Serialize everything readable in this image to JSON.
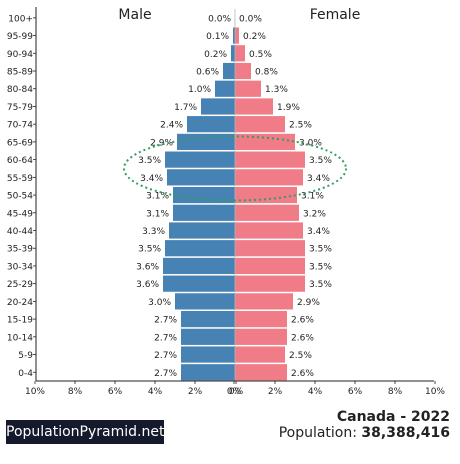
{
  "chart_data": {
    "type": "bar",
    "subtype": "population-pyramid",
    "left_label": "Male",
    "right_label": "Female",
    "categories": [
      "100+",
      "95-99",
      "90-94",
      "85-89",
      "80-84",
      "75-79",
      "70-74",
      "65-69",
      "60-64",
      "55-59",
      "50-54",
      "45-49",
      "40-44",
      "35-39",
      "30-34",
      "25-29",
      "20-24",
      "15-19",
      "10-14",
      "5-9",
      "0-4"
    ],
    "series": [
      {
        "name": "Male",
        "values": [
          0.0,
          0.1,
          0.2,
          0.6,
          1.0,
          1.7,
          2.4,
          2.9,
          3.5,
          3.4,
          3.1,
          3.1,
          3.3,
          3.5,
          3.6,
          3.6,
          3.0,
          2.7,
          2.7,
          2.7,
          2.7
        ]
      },
      {
        "name": "Female",
        "values": [
          0.0,
          0.2,
          0.5,
          0.8,
          1.3,
          1.9,
          2.5,
          3.0,
          3.5,
          3.4,
          3.1,
          3.2,
          3.4,
          3.5,
          3.5,
          3.5,
          2.9,
          2.6,
          2.6,
          2.5,
          2.6
        ]
      }
    ],
    "x_ticks": [
      "10%",
      "8%",
      "6%",
      "4%",
      "2%",
      "0%",
      "0%",
      "2%",
      "4%",
      "6%",
      "8%",
      "10%"
    ],
    "xlim": [
      -10,
      10
    ],
    "highlight": {
      "shape": "dashed-ellipse",
      "categories": [
        "60-64",
        "55-59"
      ]
    },
    "colors": {
      "male": "#4682b4",
      "female": "#f07c88",
      "highlight": "#2e9e63"
    }
  },
  "brand": "PopulationPyramid.net",
  "country_year": "Canada - 2022",
  "population_label": "Population:",
  "population_value": "38,388,416"
}
